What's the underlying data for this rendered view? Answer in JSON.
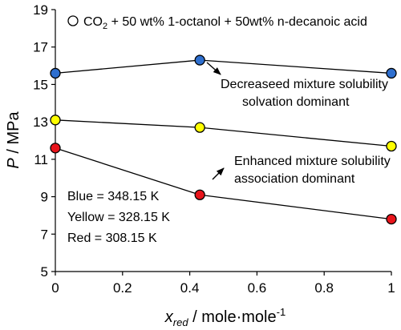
{
  "chart_data": {
    "type": "line",
    "xlim": [
      0,
      1
    ],
    "ylim": [
      5,
      19
    ],
    "x_ticks": [
      0,
      0.2,
      0.4,
      0.6,
      0.8,
      1
    ],
    "x_tick_labels": [
      "0",
      "0.2",
      "0.4",
      "0.6",
      "0.8",
      "1"
    ],
    "y_ticks": [
      5,
      7,
      9,
      11,
      13,
      15,
      17,
      19
    ],
    "y_tick_labels": [
      "5",
      "7",
      "9",
      "11",
      "13",
      "15",
      "17",
      "19"
    ],
    "grid": false,
    "xlabel": {
      "var": "x",
      "sub": "red",
      "unit": " / mole·mole",
      "sup": "-1"
    },
    "ylabel": {
      "var": "P",
      "unit": " / MPa"
    },
    "legend": {
      "symbol": "open-circle",
      "text_pre": "CO",
      "text_sub": "2",
      "text_post": " + 50 wt% 1-octanol + 50wt% n-decanoic acid"
    },
    "series": [
      {
        "color": "#2E6FCF",
        "x": [
          0,
          0.43,
          1
        ],
        "y": [
          15.6,
          16.3,
          15.6
        ]
      },
      {
        "color": "#FFFF00",
        "x": [
          0,
          0.43,
          1
        ],
        "y": [
          13.1,
          12.7,
          11.7
        ]
      },
      {
        "color": "#E8141B",
        "x": [
          0,
          0.43,
          1
        ],
        "y": [
          11.6,
          9.1,
          7.8
        ]
      }
    ],
    "annotations": [
      {
        "line1": "Decreaseed mixture solubility",
        "line2": "solvation dominant"
      },
      {
        "line1": "Enhanced mixture solubility",
        "line2": "association dominant"
      }
    ],
    "temperature_notes": [
      "Blue = 348.15 K",
      "Yellow = 328.15 K",
      "Red = 308.15 K"
    ]
  }
}
